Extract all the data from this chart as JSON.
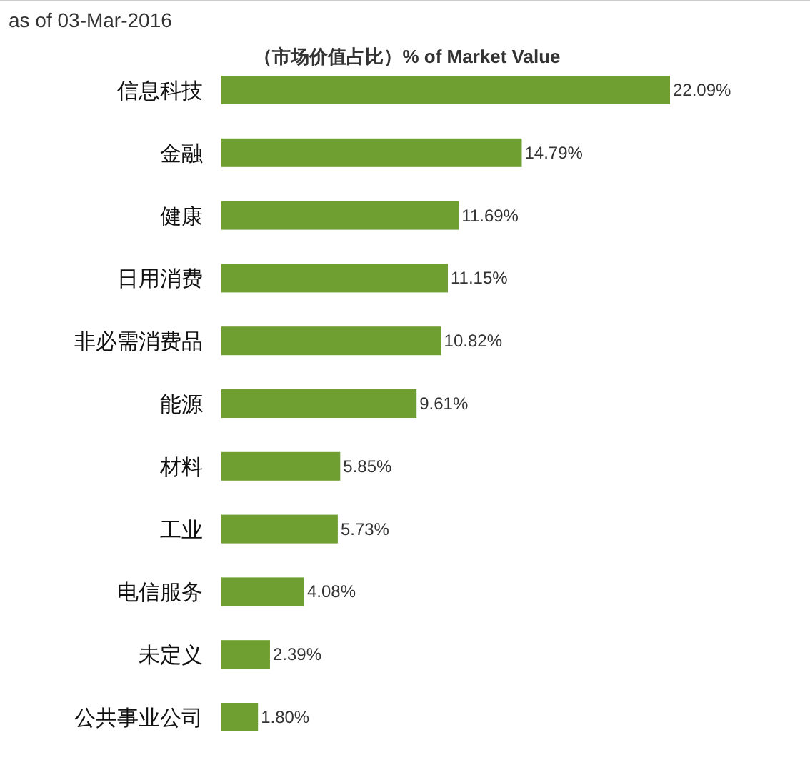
{
  "chart_data": {
    "type": "bar",
    "orientation": "horizontal",
    "title": "（市场价值占比）% of Market Value",
    "annotations": [
      "as of 03-Mar-2016"
    ],
    "categories": [
      "信息科技",
      "金融",
      "健康",
      "日用消费",
      "非必需消费品",
      "能源",
      "材料",
      "工业",
      "电信服务",
      "未定义",
      "公共事业公司"
    ],
    "values": [
      22.09,
      14.79,
      11.69,
      11.15,
      10.82,
      9.61,
      5.85,
      5.73,
      4.08,
      2.39,
      1.8
    ],
    "value_labels": [
      "22.09%",
      "14.79%",
      "11.69%",
      "11.15%",
      "10.82%",
      "9.61%",
      "5.85%",
      "5.73%",
      "4.08%",
      "2.39%",
      "1.80%"
    ],
    "color": "#6f9e31"
  }
}
